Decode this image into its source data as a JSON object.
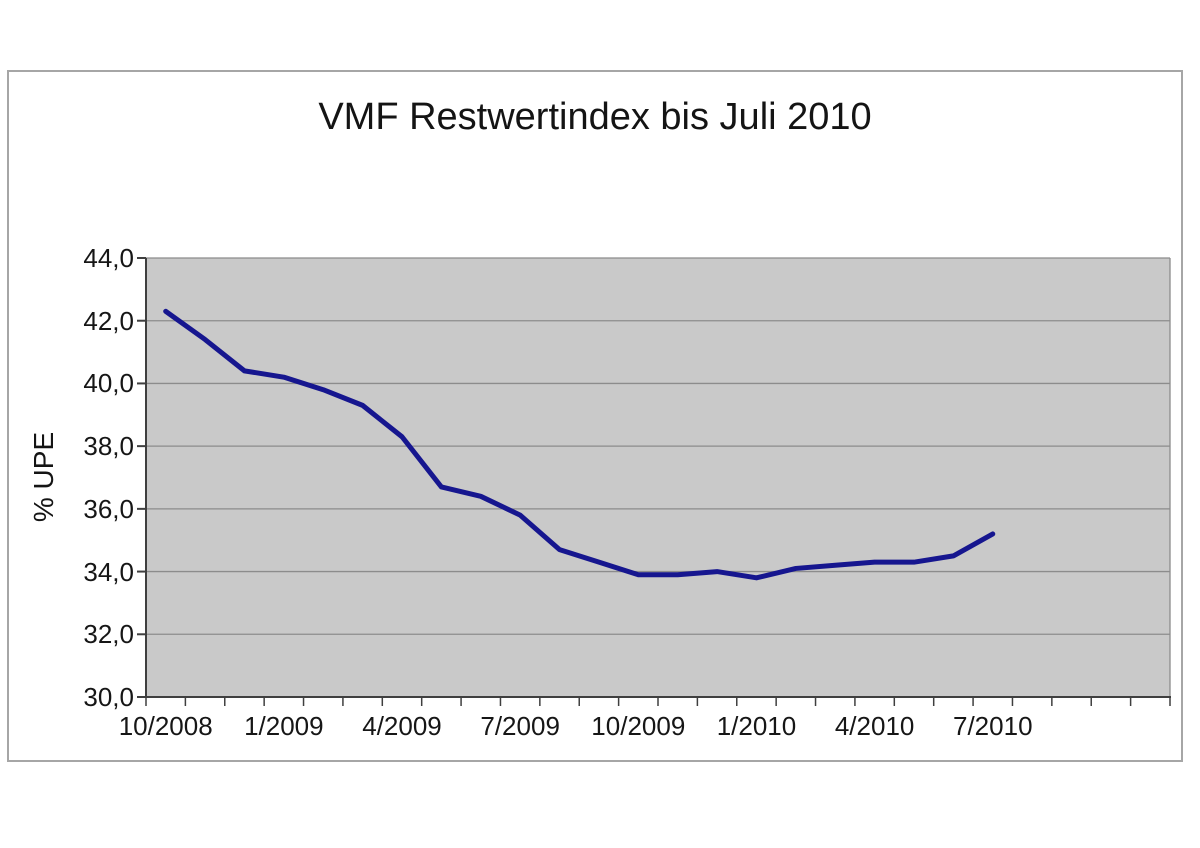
{
  "chart": {
    "title": "VMF Restwertindex bis Juli 2010",
    "y_axis_title": "% UPE"
  },
  "chart_data": {
    "type": "line",
    "title": "VMF Restwertindex bis Juli 2010",
    "xlabel": "",
    "ylabel": "% UPE",
    "x": [
      "10/2008",
      "11/2008",
      "12/2008",
      "1/2009",
      "2/2009",
      "3/2009",
      "4/2009",
      "5/2009",
      "6/2009",
      "7/2009",
      "8/2009",
      "9/2009",
      "10/2009",
      "11/2009",
      "12/2009",
      "1/2010",
      "2/2010",
      "3/2010",
      "4/2010",
      "5/2010",
      "6/2010",
      "7/2010"
    ],
    "values": [
      42.3,
      41.4,
      40.4,
      40.2,
      39.8,
      39.3,
      38.3,
      36.7,
      36.4,
      35.8,
      34.7,
      34.3,
      33.9,
      33.9,
      34.0,
      33.8,
      34.1,
      34.2,
      34.3,
      34.3,
      34.5,
      35.2
    ],
    "ylim": [
      30,
      44
    ],
    "y_tick_step": 2,
    "y_ticks": [
      {
        "value": 44,
        "label": "44,0"
      },
      {
        "value": 42,
        "label": "42,0"
      },
      {
        "value": 40,
        "label": "40,0"
      },
      {
        "value": 38,
        "label": "38,0"
      },
      {
        "value": 36,
        "label": "36,0"
      },
      {
        "value": 34,
        "label": "34,0"
      },
      {
        "value": 32,
        "label": "32,0"
      },
      {
        "value": 30,
        "label": "30,0"
      }
    ],
    "x_ticks": [
      {
        "slot": 0,
        "label": "10/2008"
      },
      {
        "slot": 3,
        "label": "1/2009"
      },
      {
        "slot": 6,
        "label": "4/2009"
      },
      {
        "slot": 9,
        "label": "7/2009"
      },
      {
        "slot": 12,
        "label": "10/2009"
      },
      {
        "slot": 15,
        "label": "1/2010"
      },
      {
        "slot": 18,
        "label": "4/2010"
      },
      {
        "slot": 21,
        "label": "7/2010"
      }
    ],
    "total_slots": 26,
    "grid": "horizontal",
    "legend": "none",
    "colors": {
      "series_line": "#16168f",
      "plot_background": "#c9c9c9",
      "gridline": "#8c8c8c",
      "axis": "#3f3f3f",
      "frame_border": "#a6a6a6",
      "text": "#161616"
    }
  }
}
